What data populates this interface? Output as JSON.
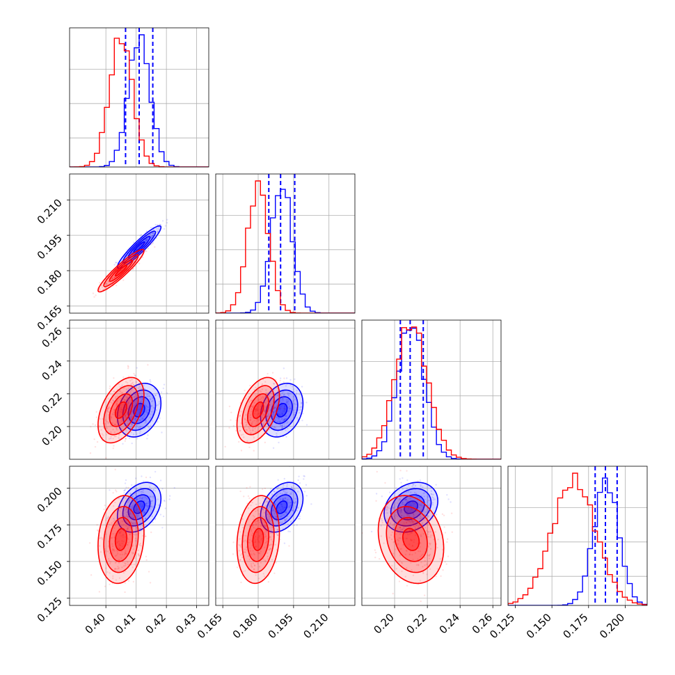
{
  "chart_data": {
    "type": "scatter",
    "layout": "corner",
    "grid": true,
    "colors": {
      "series_a": "#0000ff",
      "series_b": "#ff0000"
    },
    "parameters": [
      {
        "range": [
          0.388,
          0.434
        ],
        "ticks": [
          0.4,
          0.41,
          0.42,
          0.43
        ],
        "tick_labels": [
          "0.40",
          "0.41",
          "0.42",
          "0.43"
        ]
      },
      {
        "range": [
          0.162,
          0.221
        ],
        "ticks": [
          0.165,
          0.18,
          0.195,
          0.21
        ],
        "tick_labels": [
          "0.165",
          "0.180",
          "0.195",
          "0.210"
        ]
      },
      {
        "range": [
          0.18,
          0.265
        ],
        "ticks": [
          0.2,
          0.22,
          0.24,
          0.26
        ],
        "tick_labels": [
          "0.20",
          "0.22",
          "0.24",
          "0.26"
        ]
      },
      {
        "range": [
          0.12,
          0.215
        ],
        "ticks": [
          0.125,
          0.15,
          0.175,
          0.2
        ],
        "tick_labels": [
          "0.125",
          "0.150",
          "0.175",
          "0.200"
        ]
      }
    ],
    "series": [
      {
        "color": "#0000ff",
        "means": [
          0.411,
          0.19,
          0.21,
          0.187
        ],
        "sigmas": [
          0.0036,
          0.0045,
          0.0082,
          0.0085
        ],
        "quantiles": [
          [
            0.4065,
            0.411,
            0.4155
          ],
          [
            0.1845,
            0.1895,
            0.1955
          ],
          [
            0.2035,
            0.2095,
            0.2175
          ],
          [
            0.1795,
            0.1865,
            0.1945
          ]
        ],
        "correlations": [
          [
            0,
            1,
            0.93
          ],
          [
            0,
            2,
            0.25
          ],
          [
            1,
            2,
            0.25
          ],
          [
            0,
            3,
            0.35
          ],
          [
            1,
            3,
            0.35
          ],
          [
            2,
            3,
            0.25
          ]
        ],
        "show_quantile_lines": true
      },
      {
        "color": "#ff0000",
        "means": [
          0.405,
          0.18,
          0.21,
          0.165
        ],
        "sigmas": [
          0.0038,
          0.0045,
          0.01,
          0.015
        ],
        "correlations": [
          [
            0,
            1,
            0.93
          ],
          [
            0,
            2,
            0.45
          ],
          [
            1,
            2,
            0.45
          ],
          [
            0,
            3,
            0.15
          ],
          [
            1,
            3,
            0.15
          ],
          [
            2,
            3,
            -0.2
          ]
        ],
        "show_quantile_lines": false
      }
    ]
  }
}
